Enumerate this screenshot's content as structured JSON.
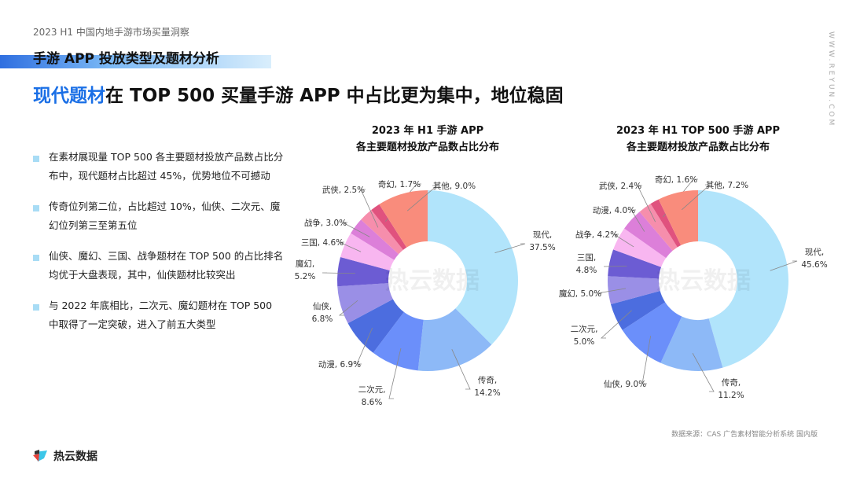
{
  "header": {
    "report_title": "2023 H1 中国内地手游市场买量洞察",
    "section_title": "手游 APP 投放类型及题材分析",
    "headline_highlight": "现代题材",
    "headline_rest": "在 TOP 500 买量手游 APP 中占比更为集中，地位稳固",
    "site": "WWW.REYUN.COM"
  },
  "bullets": [
    "在素材展现量 TOP 500 各主要题材投放产品数占比分布中，现代题材占比超过 45%，优势地位不可撼动",
    "传奇位列第二位，占比超过 10%，仙侠、二次元、魔幻位列第三至第五位",
    "仙侠、魔幻、三国、战争题材在 TOP 500 的占比排名均优于大盘表现，其中，仙侠题材比较突出",
    "与 2022 年底相比，二次元、魔幻题材在 TOP 500 中取得了一定突破，进入了前五大类型"
  ],
  "watermark": "热云数据",
  "footer": {
    "source": "数据来源：CAS 广告素材智能分析系统 国内版",
    "logo_text": "热云数据"
  },
  "slice_colors": [
    "#b1e4fb",
    "#8db9f7",
    "#6b8ffa",
    "#4c6ddf",
    "#9a8fe6",
    "#6c5cd3",
    "#f8b6f0",
    "#dc7fd9",
    "#f68eac",
    "#e0527e",
    "#f98c7c"
  ],
  "chart_data": [
    {
      "type": "pie",
      "donut": true,
      "title": [
        "2023 年 H1 手游 APP",
        "各主要题材投放产品数占比分布"
      ],
      "unit": "%",
      "categories": [
        "现代",
        "传奇",
        "二次元",
        "动漫",
        "仙侠",
        "魔幻",
        "三国",
        "战争",
        "武侠",
        "奇幻",
        "其他"
      ],
      "values": [
        37.5,
        14.2,
        8.6,
        6.9,
        6.8,
        5.2,
        4.6,
        3.0,
        2.5,
        1.7,
        9.0
      ]
    },
    {
      "type": "pie",
      "donut": true,
      "title": [
        "2023 年 H1 TOP 500 手游 APP",
        "各主要题材投放产品数占比分布"
      ],
      "unit": "%",
      "categories": [
        "现代",
        "传奇",
        "仙侠",
        "二次元",
        "魔幻",
        "三国",
        "战争",
        "动漫",
        "武侠",
        "奇幻",
        "其他"
      ],
      "values": [
        45.6,
        11.2,
        9.0,
        5.0,
        5.0,
        4.8,
        4.2,
        4.0,
        2.4,
        1.6,
        7.2
      ]
    }
  ]
}
